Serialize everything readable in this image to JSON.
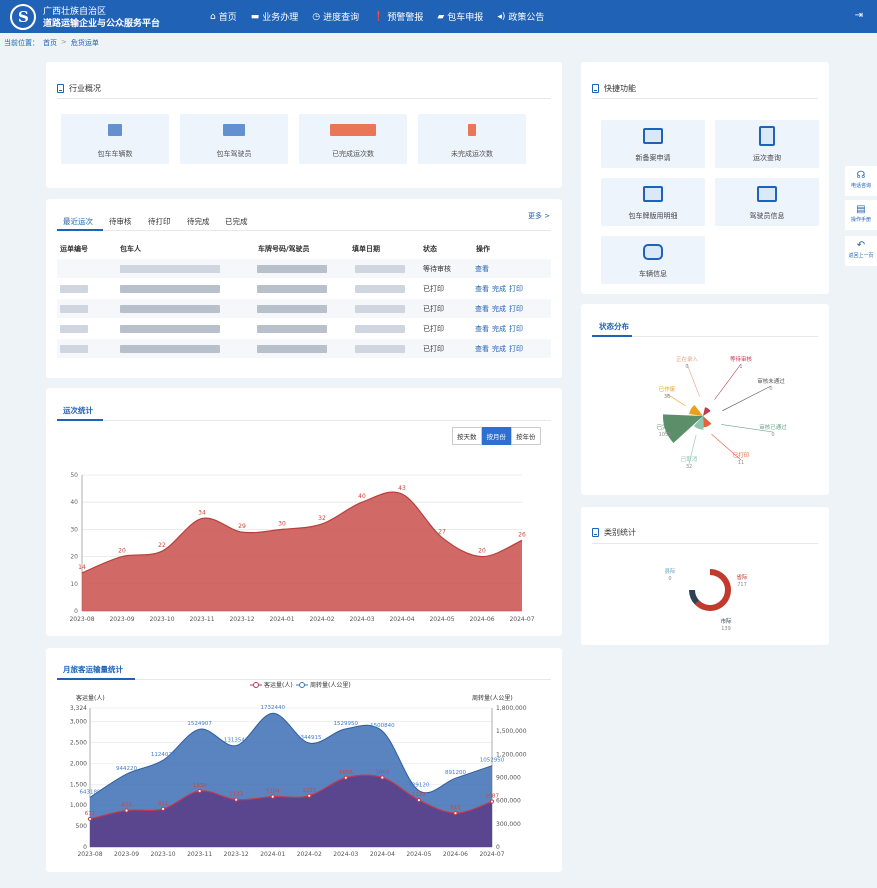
{
  "header": {
    "logo_glyph": "S",
    "brand_line1": "广西壮族自治区",
    "brand_line2": "道路运输企业与公众服务平台",
    "nav": [
      {
        "icon": "⌂",
        "label": "首页"
      },
      {
        "icon": "▬",
        "label": "业务办理"
      },
      {
        "icon": "◷",
        "label": "进度查询"
      },
      {
        "icon": "❗",
        "label": "预警警报"
      },
      {
        "icon": "▰",
        "label": "包车申报"
      },
      {
        "icon": "◂)",
        "label": "政策公告"
      }
    ],
    "exit_icon": "⇥"
  },
  "breadcrumb": {
    "prefix": "当前位置：",
    "home": "首页",
    "sep": ">",
    "current": "危货运单"
  },
  "overview": {
    "title": "行业概况",
    "stats": [
      {
        "label": "包车车辆数",
        "color": "#4a7fc8"
      },
      {
        "label": "包车驾驶员",
        "color": "#4a7fc8"
      },
      {
        "label": "已完成运次数",
        "color": "#e8603a"
      },
      {
        "label": "未完成运次数",
        "color": "#e8603a"
      }
    ]
  },
  "trips": {
    "tabs": [
      "最近运次",
      "待审核",
      "待打印",
      "待完成",
      "已完成"
    ],
    "more": "更多 >",
    "headers": [
      "运单编号",
      "包车人",
      "车牌号码/驾驶员",
      "填单日期",
      "状态",
      "操作"
    ],
    "rows": [
      {
        "status": "等待审核",
        "ops": [
          "查看"
        ]
      },
      {
        "status": "已打印",
        "ops": [
          "查看",
          "完成",
          "打印"
        ]
      },
      {
        "status": "已打印",
        "ops": [
          "查看",
          "完成",
          "打印"
        ]
      },
      {
        "status": "已打印",
        "ops": [
          "查看",
          "完成",
          "打印"
        ]
      },
      {
        "status": "已打印",
        "ops": [
          "查看",
          "完成",
          "打印"
        ]
      }
    ]
  },
  "trip_stats": {
    "title": "运次统计",
    "buttons": [
      "按天数",
      "按月份",
      "按年份"
    ],
    "active_button": 1
  },
  "passenger_stats": {
    "title": "月旅客运输量统计",
    "legend": [
      "客运量(人)",
      "周转量(人公里)"
    ],
    "left_axis": "客运量(人)",
    "right_axis": "周转量(人公里)"
  },
  "quick": {
    "title": "快捷功能",
    "items": [
      "新备案申请",
      "运次查询",
      "包车牌版用明细",
      "驾驶员信息",
      "车辆信息"
    ]
  },
  "status_dist": {
    "title": "状态分布"
  },
  "category": {
    "title": "类别统计"
  },
  "side_tools": [
    {
      "icon": "☊",
      "label": "电话咨询"
    },
    {
      "icon": "▤",
      "label": "操作手册"
    },
    {
      "icon": "↶",
      "label": "返回上一页"
    }
  ],
  "chart_data": [
    {
      "type": "area",
      "categories": [
        "2023-08",
        "2023-09",
        "2023-10",
        "2023-11",
        "2023-12",
        "2024-01",
        "2024-02",
        "2024-03",
        "2024-04",
        "2024-05",
        "2024-06",
        "2024-07"
      ],
      "series": [
        {
          "values": [
            14,
            20,
            22,
            34,
            29,
            30,
            32,
            40,
            43,
            27,
            20,
            26
          ]
        }
      ],
      "ylim": [
        0,
        50
      ],
      "yticks": [
        0,
        10,
        20,
        30,
        40,
        50
      ],
      "color": "#c9504b"
    },
    {
      "type": "area",
      "categories": [
        "2023-08",
        "2023-09",
        "2023-10",
        "2023-11",
        "2023-12",
        "2024-01",
        "2024-02",
        "2024-03",
        "2024-04",
        "2024-05",
        "2024-06",
        "2024-07"
      ],
      "series": [
        {
          "name": "客运量(人)",
          "values": [
            671,
            873,
            911,
            1339,
            1133,
            1204,
            1225,
            1656,
            1662,
            1122,
            810,
            1087
          ],
          "color": "#c23a4e"
        },
        {
          "name": "周转量(人公里)",
          "values": [
            643180,
            944220,
            1124023,
            1524907,
            1313541,
            1732440,
            1344915,
            1529950,
            1500840,
            729120,
            891200,
            1052950
          ],
          "color": "#3d74c0"
        }
      ],
      "left_ylim": [
        0,
        3324
      ],
      "left_ticks": [
        0,
        500,
        1000,
        1500,
        2000,
        2500,
        3000,
        3324
      ],
      "right_ylim": [
        0,
        1800000
      ],
      "right_ticks": [
        0,
        300000,
        600000,
        900000,
        1200000,
        1500000,
        1800000
      ],
      "left_tick_labels": [
        "0",
        "500",
        "1,000",
        "1,500",
        "2,000",
        "2,500",
        "3,000",
        "3,324"
      ],
      "right_tick_labels": [
        "0",
        "300,000",
        "600,000",
        "900,000",
        "1,200,000",
        "1,500,000",
        "1,800,000"
      ],
      "point_labels_left": [
        "671",
        "873",
        "911",
        "1339",
        "1133",
        "1204",
        "1225",
        "1656",
        "1662",
        "1122",
        "810",
        "1087"
      ],
      "point_labels_right": [
        "643180",
        "944220",
        "1124023",
        "1524907",
        "1313541",
        "1732440",
        "1344915",
        "1529950",
        "1500840",
        "729120",
        "891200",
        "1052950"
      ]
    },
    {
      "type": "pie",
      "title": "状态分布",
      "slices": [
        {
          "label": "正在录入",
          "value": 0,
          "color": "#e8a07a"
        },
        {
          "label": "等待审核",
          "value": 1,
          "color": "#c23a4e"
        },
        {
          "label": "审核未通过",
          "value": 0,
          "color": "#555555"
        },
        {
          "label": "审核已通过",
          "value": 0,
          "color": "#6aa38a"
        },
        {
          "label": "已打印",
          "value": 11,
          "color": "#e8603a"
        },
        {
          "label": "已取消",
          "value": 32,
          "color": "#8cc5b0"
        },
        {
          "label": "已完成",
          "value": 1055,
          "color": "#5a8f6a"
        },
        {
          "label": "已作废",
          "value": 36,
          "color": "#e8a020"
        }
      ]
    },
    {
      "type": "pie",
      "title": "类别统计",
      "slices": [
        {
          "label": "省际",
          "value": 717,
          "color": "#c23a2e"
        },
        {
          "label": "市际",
          "value": 139,
          "color": "#2f4155"
        },
        {
          "label": "县际",
          "value": 0,
          "color": "#6aa3c0"
        }
      ]
    }
  ]
}
